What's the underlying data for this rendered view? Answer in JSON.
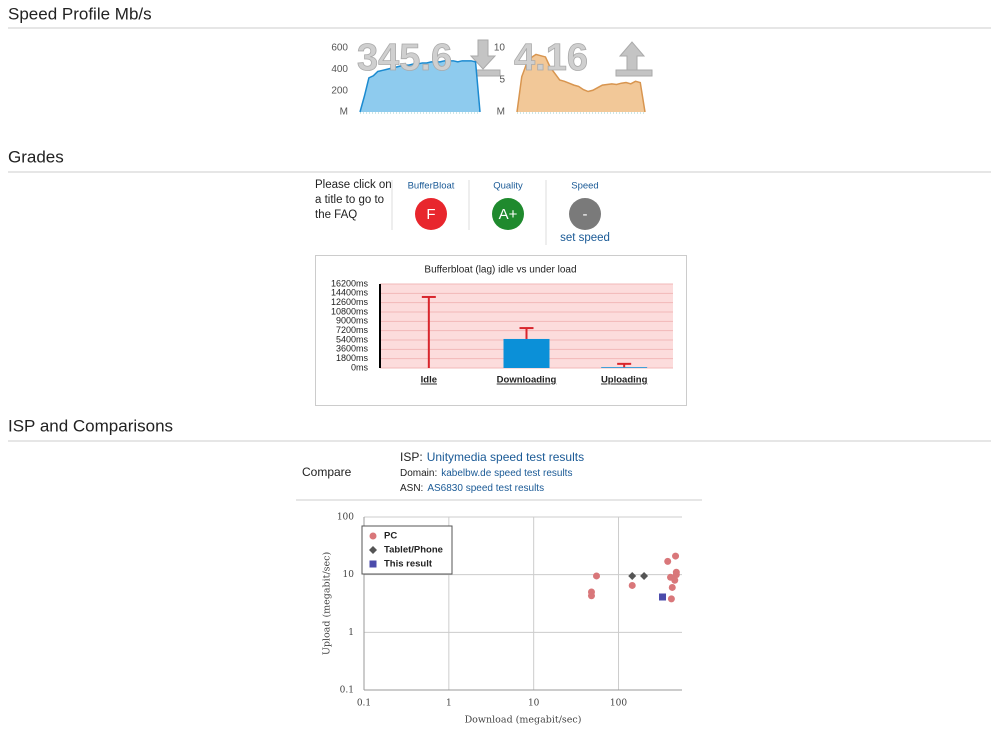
{
  "speed_profile": {
    "title": "Speed Profile Mb/s"
  },
  "grades": {
    "title": "Grades",
    "note": "Please click on a title to go to the FAQ",
    "items": [
      {
        "label": "BufferBloat",
        "grade": "F",
        "color": "#e8262d"
      },
      {
        "label": "Quality",
        "grade": "A+",
        "color": "#1f8a2e"
      },
      {
        "label": "Speed",
        "grade": "-",
        "color": "#7a7a7a"
      }
    ],
    "set_speed": "set speed"
  },
  "isp": {
    "title": "ISP and Comparisons",
    "compare": "Compare",
    "lines": [
      {
        "label": "ISP:",
        "link": "Unitymedia speed test results"
      },
      {
        "label": "Domain:",
        "link": "kabelbw.de speed test results"
      },
      {
        "label": "ASN:",
        "link": "AS6830 speed test results"
      }
    ]
  },
  "chart_data": [
    {
      "type": "area",
      "value": 345.6,
      "color": "#1b8ad0",
      "fill": "#8ecbee",
      "values": [
        0,
        150,
        320,
        340,
        380,
        390,
        400,
        410,
        420,
        430,
        440,
        440,
        450,
        450,
        460,
        460,
        470,
        470,
        470,
        480,
        480,
        480,
        470,
        480,
        480,
        480,
        470,
        0
      ],
      "ylim": [
        0,
        650
      ],
      "yticks": [
        {
          "value": 0,
          "label": "M"
        },
        200,
        400,
        600
      ]
    },
    {
      "type": "area",
      "value": 4.16,
      "color": "#d8954f",
      "fill": "#f2c898",
      "values": [
        0,
        5.5,
        7.5,
        8.5,
        9,
        8.8,
        8.6,
        7,
        6,
        5,
        4.8,
        4.5,
        4.2,
        4,
        3.5,
        3.2,
        3.4,
        3.8,
        4.2,
        4.3,
        4.4,
        4.3,
        4.5,
        4.6,
        4.4,
        4.8,
        4.6,
        0
      ],
      "ylim": [
        0,
        10
      ],
      "yticks": [
        {
          "value": 0,
          "label": "M"
        },
        5,
        10
      ]
    },
    {
      "type": "bar",
      "title": "Bufferbloat (lag) idle vs under load",
      "categories": [
        "Idle",
        "Downloading",
        "Uploading"
      ],
      "values": [
        0,
        5600,
        150
      ],
      "max": [
        13700,
        7700,
        800
      ],
      "color": "#0b90d8",
      "error_color": "#d8262d",
      "background": "#fcdcdc",
      "ylim": [
        0,
        16200
      ],
      "yticks": [
        {
          "value": 0,
          "label": "0ms"
        },
        {
          "value": 1800,
          "label": "1800ms"
        },
        {
          "value": 3600,
          "label": "3600ms"
        },
        {
          "value": 5400,
          "label": "5400ms"
        },
        {
          "value": 7200,
          "label": "7200ms"
        },
        {
          "value": 9000,
          "label": "9000ms"
        },
        {
          "value": 10800,
          "label": "10800ms"
        },
        {
          "value": 12600,
          "label": "12600ms"
        },
        {
          "value": 14400,
          "label": "14400ms"
        },
        {
          "value": 16200,
          "label": "16200ms"
        }
      ],
      "grid": true
    },
    {
      "type": "scatter",
      "x_label": "Download (megabit/sec)",
      "y_label": "Upload (megabit/sec)",
      "log_x": true,
      "log_y": true,
      "grid": true,
      "legend": "upper left",
      "xlim": [
        0.1,
        560
      ],
      "ylim": [
        0.1,
        100
      ],
      "xticks": [
        0.1,
        1,
        10,
        100
      ],
      "yticks": [
        0.1,
        1,
        10,
        100
      ],
      "series": [
        {
          "name": "PC",
          "color": "#d9777a",
          "marker": "circle",
          "x": [
            48,
            48,
            55,
            145,
            380,
            410,
            430,
            460,
            470,
            480,
            480,
            420
          ],
          "y": [
            5,
            4.3,
            9.5,
            6.5,
            17,
            9,
            6,
            8,
            21,
            11,
            10,
            3.8
          ]
        },
        {
          "name": "Tablet/Phone",
          "color": "#555555",
          "marker": "diamond",
          "x": [
            145,
            200
          ],
          "y": [
            9.5,
            9.5
          ]
        },
        {
          "name": "This result",
          "color": "#4b4bab",
          "marker": "square",
          "x": [
            330
          ],
          "y": [
            4.1
          ]
        }
      ]
    }
  ]
}
